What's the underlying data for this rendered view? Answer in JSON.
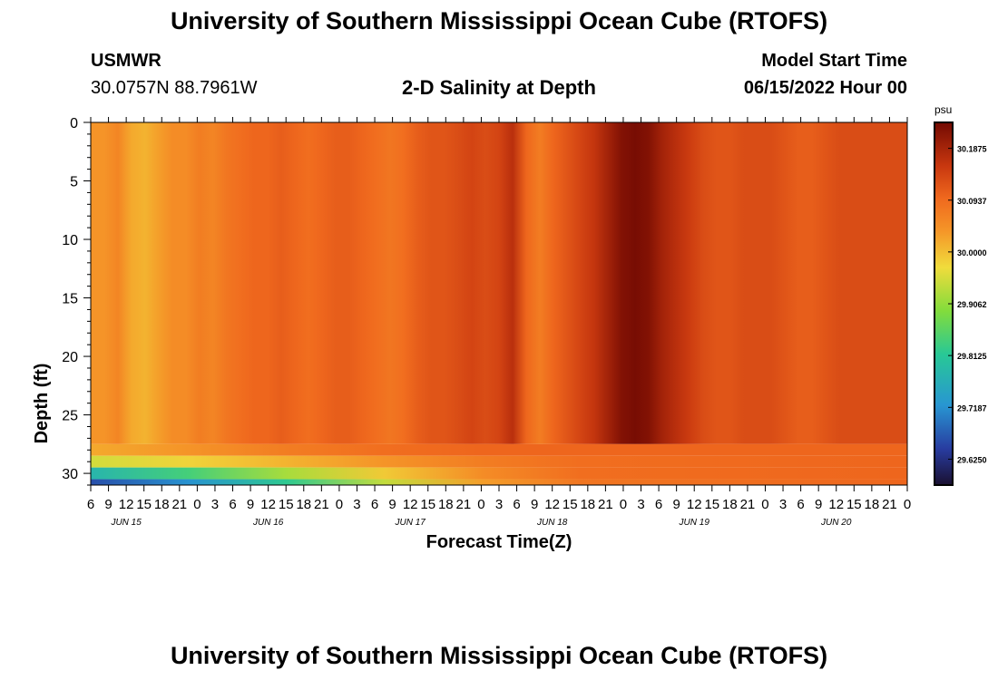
{
  "header": {
    "title": "University of Southern Mississippi Ocean Cube (RTOFS)",
    "station": "USMWR",
    "coords": "30.0757N  88.7961W",
    "plot_title": "2-D Salinity at Depth",
    "model_label": "Model Start Time",
    "model_time": "06/15/2022 Hour 00"
  },
  "footer": {
    "title": "University of Southern Mississippi Ocean Cube (RTOFS)"
  },
  "colors": {
    "low": "#1a1030",
    "mid": "#f0dc40",
    "high": "#7a0a02"
  },
  "chart_data": {
    "type": "heatmap",
    "title": "2-D Salinity at Depth",
    "xlabel": "Forecast Time(Z)",
    "ylabel": "Depth (ft)",
    "x_tick_labels": [
      "6",
      "9",
      "12",
      "15",
      "18",
      "21",
      "0",
      "3",
      "6",
      "9",
      "12",
      "15",
      "18",
      "21",
      "0",
      "3",
      "6",
      "9",
      "12",
      "15",
      "18",
      "21",
      "0",
      "3",
      "6",
      "9",
      "12",
      "15",
      "18",
      "21",
      "0",
      "3",
      "6",
      "9",
      "12",
      "15",
      "18",
      "21",
      "0",
      "3",
      "6",
      "9",
      "12",
      "15",
      "18",
      "21",
      "0"
    ],
    "day_labels": [
      "JUN 15",
      "JUN 16",
      "JUN 17",
      "JUN 18",
      "JUN 19",
      "JUN 20"
    ],
    "y_ticks": [
      0,
      5,
      10,
      15,
      20,
      25,
      30
    ],
    "ylim": [
      0,
      31
    ],
    "colorbar": {
      "unit": "psu",
      "ticks": [
        "30.1875",
        "30.0937",
        "30.0000",
        "29.9062",
        "29.8125",
        "29.7187",
        "29.6250"
      ],
      "range": [
        29.5781,
        30.2344
      ]
    },
    "column_values_upper": [
      30.04,
      30.04,
      30.06,
      30.02,
      30.01,
      30.03,
      30.05,
      30.05,
      30.07,
      30.06,
      30.08,
      30.09,
      30.1,
      30.1,
      30.11,
      30.1,
      30.09,
      30.1,
      30.11,
      30.11,
      30.1,
      30.09,
      30.08,
      30.09,
      30.11,
      30.12,
      30.12,
      30.13,
      30.14,
      30.13,
      30.14,
      30.17,
      30.1,
      30.07,
      30.1,
      30.12,
      30.14,
      30.16,
      30.19,
      30.22,
      30.23,
      30.22,
      30.19,
      30.17,
      30.15,
      30.13,
      30.12,
      30.12,
      30.13,
      30.13,
      30.13,
      30.12,
      30.11,
      30.11,
      30.12,
      30.13,
      30.13,
      30.13,
      30.13,
      30.13,
      30.13
    ],
    "bottom_layer_values": [
      {
        "depth": [
          27.5,
          28.5
        ],
        "values": [
          30.02,
          30.04,
          30.07,
          30.09,
          30.1,
          30.1,
          30.1
        ]
      },
      {
        "depth": [
          28.5,
          29.5
        ],
        "values": [
          29.95,
          29.98,
          30.01,
          30.04,
          30.07,
          30.09,
          30.1
        ]
      },
      {
        "depth": [
          29.5,
          30.5
        ],
        "values": [
          29.78,
          29.84,
          29.92,
          29.99,
          30.05,
          30.09,
          30.1
        ]
      },
      {
        "depth": [
          30.5,
          31.0
        ],
        "values": [
          29.66,
          29.72,
          29.82,
          29.94,
          30.03,
          30.08,
          30.1
        ]
      }
    ]
  }
}
